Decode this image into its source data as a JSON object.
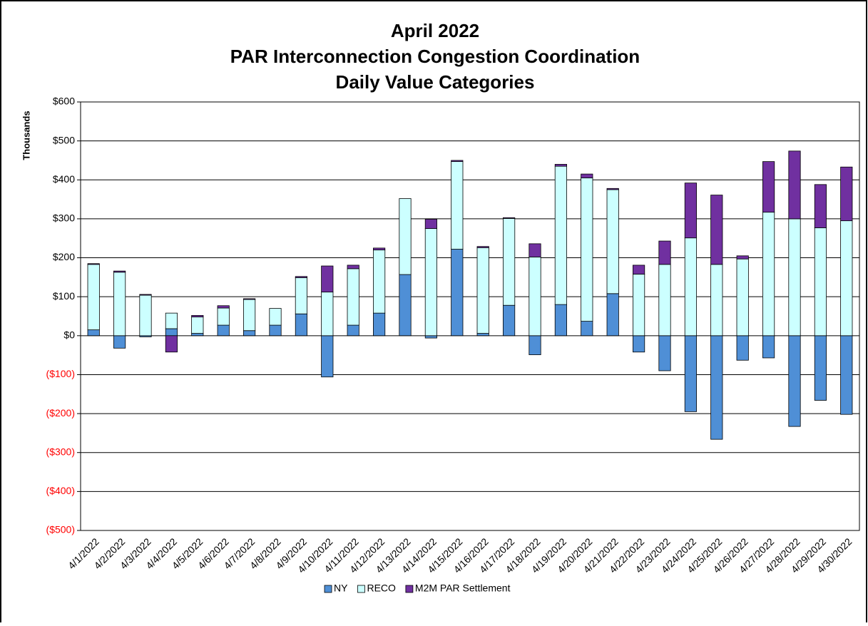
{
  "chart_data": {
    "type": "stacked_bar",
    "title": [
      "April 2022",
      "PAR Interconnection Congestion Coordination",
      "Daily Value Categories"
    ],
    "y_label": "Thousands",
    "categories": [
      "4/1/2022",
      "4/2/2022",
      "4/3/2022",
      "4/4/2022",
      "4/5/2022",
      "4/6/2022",
      "4/7/2022",
      "4/8/2022",
      "4/9/2022",
      "4/10/2022",
      "4/11/2022",
      "4/12/2022",
      "4/13/2022",
      "4/14/2022",
      "4/15/2022",
      "4/16/2022",
      "4/17/2022",
      "4/18/2022",
      "4/19/2022",
      "4/20/2022",
      "4/21/2022",
      "4/22/2022",
      "4/23/2022",
      "4/24/2022",
      "4/25/2022",
      "4/26/2022",
      "4/27/2022",
      "4/28/2022",
      "4/29/2022",
      "4/30/2022"
    ],
    "series": [
      {
        "name": "NY",
        "color": "#4f8fd6",
        "values": [
          15,
          -32,
          -3,
          18,
          6,
          27,
          13,
          27,
          56,
          -106,
          27,
          58,
          157,
          -6,
          222,
          6,
          78,
          -49,
          80,
          37,
          108,
          -42,
          -90,
          -195,
          -266,
          -63,
          -57,
          -233,
          -166,
          -202
        ]
      },
      {
        "name": "RECO",
        "color": "#ccffff",
        "values": [
          168,
          163,
          104,
          40,
          42,
          44,
          80,
          43,
          93,
          112,
          145,
          162,
          195,
          275,
          225,
          220,
          223,
          202,
          355,
          368,
          267,
          158,
          183,
          251,
          183,
          197,
          317,
          300,
          277,
          295
        ]
      },
      {
        "name": "M2M PAR Settlement",
        "color": "#7030a0",
        "values": [
          2,
          3,
          2,
          -42,
          4,
          6,
          2,
          0,
          3,
          67,
          9,
          5,
          0,
          24,
          3,
          3,
          2,
          34,
          5,
          10,
          3,
          23,
          60,
          141,
          178,
          8,
          130,
          174,
          111,
          138
        ]
      }
    ],
    "ylim": [
      -500,
      600
    ],
    "yticks": [
      {
        "value": -500,
        "label": "($500)"
      },
      {
        "value": -400,
        "label": "($400)"
      },
      {
        "value": -300,
        "label": "($300)"
      },
      {
        "value": -200,
        "label": "($200)"
      },
      {
        "value": -100,
        "label": "($100)"
      },
      {
        "value": 0,
        "label": "$0"
      },
      {
        "value": 100,
        "label": "$100"
      },
      {
        "value": 200,
        "label": "$200"
      },
      {
        "value": 300,
        "label": "$300"
      },
      {
        "value": 400,
        "label": "$400"
      },
      {
        "value": 500,
        "label": "$500"
      },
      {
        "value": 600,
        "label": "$600"
      }
    ],
    "negative_tick_color": "#ff0000",
    "grid": true,
    "legend": "bottom"
  }
}
